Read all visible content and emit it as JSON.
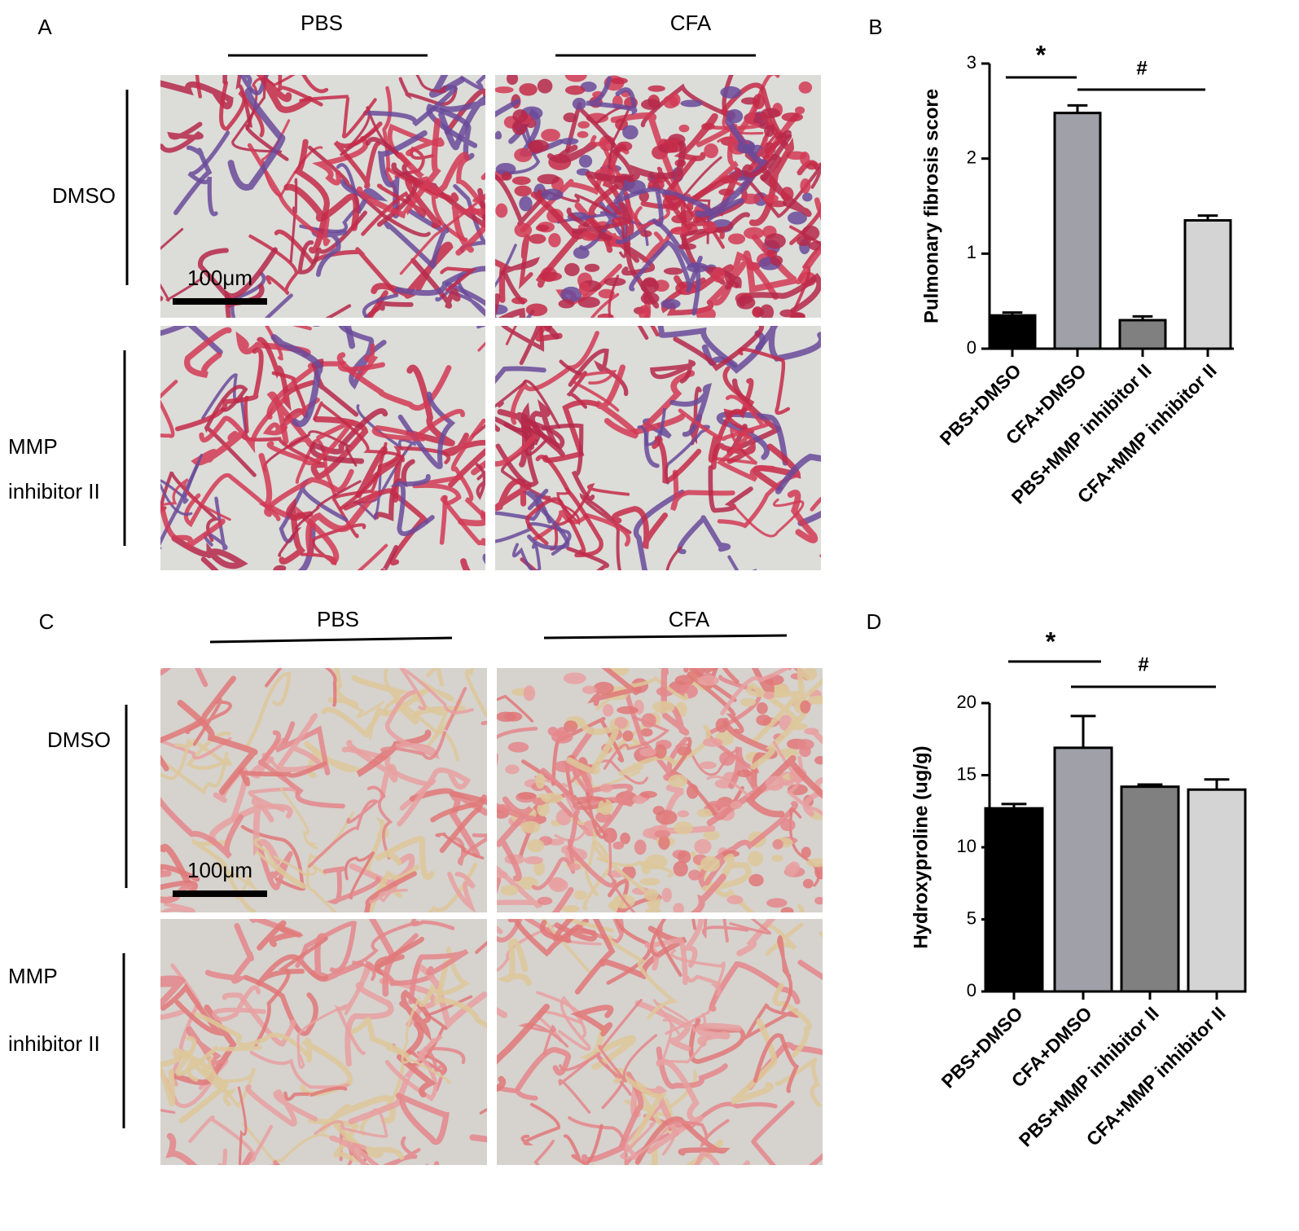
{
  "panels": [
    {
      "label": "A",
      "columns": [
        "PBS",
        "CFA"
      ],
      "rows": [
        [
          "DMSO"
        ],
        [
          "MMP",
          "inhibitor II"
        ]
      ],
      "scale_bar": "100μm",
      "stain": "masson"
    },
    {
      "label": "C",
      "columns": [
        "PBS",
        "CFA"
      ],
      "rows": [
        [
          "DMSO"
        ],
        [
          "MMP",
          "inhibitor II"
        ]
      ],
      "scale_bar": "100μm",
      "stain": "sirius"
    }
  ],
  "chart_data": [
    {
      "type": "bar",
      "label": "B",
      "ylabel": "Pulmonary fibrosis score",
      "categories": [
        "PBS+DMSO",
        "CFA+DMSO",
        "PBS+MMP inhibitor II",
        "CFA+MMP inhibitor II"
      ],
      "values": [
        0.35,
        2.48,
        0.3,
        1.35
      ],
      "errors": [
        0.03,
        0.08,
        0.04,
        0.05
      ],
      "colors": [
        "#000000",
        "#a0a0a8",
        "#808080",
        "#d4d4d4"
      ],
      "ylim": [
        0,
        3
      ],
      "yticks": [
        0,
        1,
        2,
        3
      ],
      "annotations": [
        "*",
        "#"
      ]
    },
    {
      "type": "bar",
      "label": "D",
      "ylabel": "Hydroxyproline (ug/g)",
      "categories": [
        "PBS+DMSO",
        "CFA+DMSO",
        "PBS+MMP inhibitor II",
        "CFA+MMP inhibitor II"
      ],
      "values": [
        12.7,
        16.9,
        14.2,
        14.0
      ],
      "errors": [
        0.3,
        2.2,
        0.15,
        0.7
      ],
      "colors": [
        "#000000",
        "#a0a0a8",
        "#808080",
        "#d4d4d4"
      ],
      "ylim": [
        0,
        20
      ],
      "yticks": [
        0,
        5,
        10,
        15,
        20
      ],
      "annotations": [
        "*",
        "#"
      ]
    }
  ]
}
